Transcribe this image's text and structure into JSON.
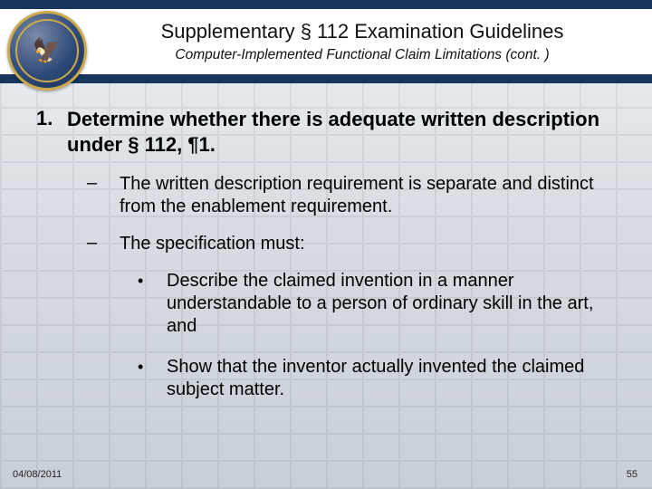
{
  "header": {
    "title": "Supplementary § 112 Examination Guidelines",
    "subtitle": "Computer-Implemented Functional Claim Limitations (cont. )",
    "band_color": "#17365d",
    "seal": {
      "ring_color": "#c9a94a",
      "bg_outer": "#172e52",
      "glyph": "🦅"
    }
  },
  "list1": {
    "number": "1.",
    "text": "Determine whether there is adequate written description under § 112, ¶1."
  },
  "sub": [
    {
      "marker": "–",
      "text": "The written description requirement is separate and distinct from the enablement requirement."
    },
    {
      "marker": "–",
      "text": "The specification must:"
    }
  ],
  "subsub": [
    {
      "marker": "•",
      "text": "Describe the claimed invention in a manner understandable to a person of ordinary skill in the art, and"
    },
    {
      "marker": "•",
      "text": "Show that the inventor actually invented the claimed subject matter."
    }
  ],
  "footer": {
    "date": "04/08/2011",
    "page": "55"
  },
  "style": {
    "slide_w": 720,
    "slide_h": 540,
    "title_fontsize": 22,
    "subtitle_fontsize": 15.5,
    "h1_fontsize": 22,
    "l2_fontsize": 20,
    "l3_fontsize": 20,
    "footer_fontsize": 11,
    "bg_gradient": [
      "#eef1f4",
      "#d8dde3",
      "#c8cfd6"
    ]
  }
}
